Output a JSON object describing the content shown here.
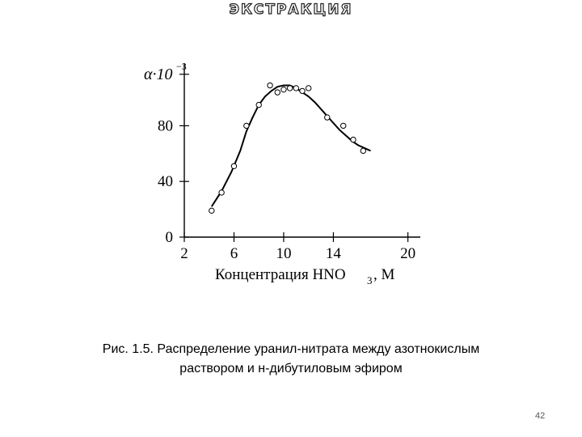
{
  "slide": {
    "title": "ЭКСТРАКЦИЯ",
    "caption_line1": "Рис. 1.5. Распределение уранил-нитрата между азотнокислым",
    "caption_line2": "раствором и н-дибутиловым эфиром",
    "page_number": "42"
  },
  "chart_data": {
    "type": "scatter",
    "title": "",
    "xlabel_main": "Концентрация HNO",
    "xlabel_sub": "3",
    "xlabel_tail": ", М",
    "ylabel_main": "α·10",
    "ylabel_sup": "−3",
    "xlim": [
      2,
      21
    ],
    "ylim": [
      0,
      125
    ],
    "x_ticks": [
      2,
      6,
      10,
      14,
      20
    ],
    "y_ticks": [
      0,
      40,
      80
    ],
    "grid": false,
    "points": {
      "x": [
        4.2,
        5.0,
        6.0,
        7.0,
        8.0,
        8.9,
        9.5,
        10.0,
        10.5,
        11.0,
        11.5,
        12.0,
        13.5,
        14.8,
        15.6,
        16.4
      ],
      "y": [
        19,
        32,
        51,
        80,
        95,
        109,
        104,
        106,
        107,
        107,
        105,
        107,
        86,
        80,
        70,
        62
      ]
    },
    "curve": {
      "x": [
        4.2,
        5.0,
        5.8,
        6.5,
        7.0,
        7.5,
        8.0,
        8.5,
        9.0,
        9.5,
        10.0,
        10.5,
        11.0,
        11.5,
        12.0,
        12.5,
        13.0,
        13.5,
        14.0,
        14.5,
        15.0,
        15.5,
        16.0,
        16.5,
        17.0
      ],
      "y": [
        22,
        33,
        47,
        62,
        76,
        86,
        95,
        101,
        105,
        108,
        109,
        109,
        107,
        104,
        101,
        97,
        92,
        87,
        82,
        77,
        73,
        69,
        66,
        64,
        62
      ]
    }
  }
}
